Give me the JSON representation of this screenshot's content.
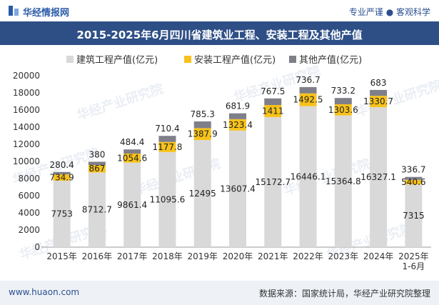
{
  "header": {
    "brand": "华经情报网",
    "tagline": "专业严谨 ● 客观科学",
    "logo_icon": "huajing-logo-icon"
  },
  "title": "2015-2025年6月四川省建筑业工程、安装工程及其他产值",
  "footer": {
    "site": "www.huaon.com",
    "source": "数据来源：国家统计局，华经产业研究院整理"
  },
  "watermark": "华经产业研究院",
  "colors": {
    "construction": "#d9d9d9",
    "installation": "#f7c21b",
    "other": "#7f7f8a",
    "title_bg": "#2e4f86"
  },
  "chart_data": {
    "type": "bar",
    "stacked": true,
    "categories": [
      "2015年",
      "2016年",
      "2017年",
      "2018年",
      "2019年",
      "2020年",
      "2021年",
      "2022年",
      "2023年",
      "2024年",
      "2025年\n1-6月"
    ],
    "series": [
      {
        "name": "建筑工程产值(亿元)",
        "values": [
          7753,
          8712.7,
          9861.4,
          11095.6,
          12495,
          13607.4,
          15172.7,
          16446.1,
          15364.8,
          16327.1,
          7315
        ]
      },
      {
        "name": "安装工程产值(亿元)",
        "values": [
          734.9,
          867,
          1054.6,
          1177.8,
          1387.9,
          1323.4,
          1411,
          1492.5,
          1303.6,
          1330.7,
          540.6
        ]
      },
      {
        "name": "其他产值(亿元)",
        "values": [
          280.4,
          380,
          484.4,
          710.4,
          785.3,
          681.9,
          767.5,
          736.7,
          733.2,
          683,
          336.7
        ]
      }
    ],
    "ylim": [
      0,
      20000
    ],
    "yticks": [
      0,
      2000,
      4000,
      6000,
      8000,
      10000,
      12000,
      14000,
      16000,
      18000,
      20000
    ],
    "legend_position": "top",
    "grid": false
  }
}
